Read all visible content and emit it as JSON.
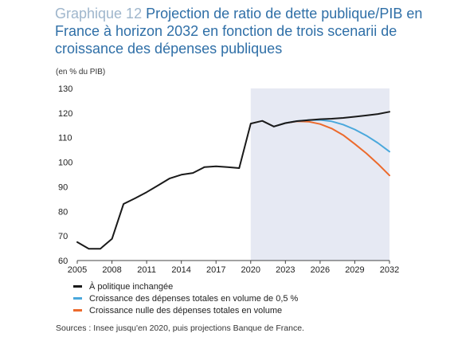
{
  "figure": {
    "label": "Graphique 12",
    "title": "Projection de ratio de dette publique/PIB en France à horizon 2032 en fonction de trois scenarii de croissance des dépenses publiques",
    "unit": "(en % du PIB)",
    "source": "Sources : Insee jusqu'en 2020, puis projections Banque de France."
  },
  "chart_data": {
    "type": "line",
    "title": "Projection de ratio de dette publique/PIB en France à horizon 2032 en fonction de trois scenarii de croissance des dépenses publiques",
    "ylabel": "(en % du PIB)",
    "xlim": [
      2005,
      2032
    ],
    "ylim": [
      60,
      130
    ],
    "x_ticks": [
      "2005",
      "2008",
      "2011",
      "2014",
      "2017",
      "2020",
      "2023",
      "2026",
      "2029",
      "2032"
    ],
    "y_ticks": [
      "60",
      "70",
      "80",
      "90",
      "100",
      "110",
      "120",
      "130"
    ],
    "projection_start": 2020,
    "projection_shading_color": "#e6e9f3",
    "grid": false,
    "series": [
      {
        "name": "À politique inchangée",
        "color": "#1a1a1a",
        "points": [
          [
            2005,
            67.5
          ],
          [
            2006,
            64.8
          ],
          [
            2007,
            64.8
          ],
          [
            2008,
            68.8
          ],
          [
            2009,
            83.0
          ],
          [
            2010,
            85.3
          ],
          [
            2011,
            87.8
          ],
          [
            2012,
            90.6
          ],
          [
            2013,
            93.4
          ],
          [
            2014,
            94.9
          ],
          [
            2015,
            95.6
          ],
          [
            2016,
            98.0
          ],
          [
            2017,
            98.3
          ],
          [
            2018,
            98.0
          ],
          [
            2019,
            97.6
          ],
          [
            2020,
            115.7
          ],
          [
            2021,
            116.8
          ],
          [
            2022,
            114.5
          ],
          [
            2023,
            115.9
          ],
          [
            2024,
            116.7
          ],
          [
            2025,
            117.1
          ],
          [
            2026,
            117.5
          ],
          [
            2027,
            117.7
          ],
          [
            2028,
            118.0
          ],
          [
            2029,
            118.5
          ],
          [
            2030,
            119.0
          ],
          [
            2031,
            119.6
          ],
          [
            2032,
            120.5
          ]
        ]
      },
      {
        "name": "Croissance des dépenses totales en volume de 0,5 %",
        "color": "#4aa8dc",
        "points": [
          [
            2022,
            114.5
          ],
          [
            2023,
            115.9
          ],
          [
            2024,
            116.7
          ],
          [
            2025,
            117.1
          ],
          [
            2026,
            117.2
          ],
          [
            2027,
            116.6
          ],
          [
            2028,
            115.3
          ],
          [
            2029,
            113.3
          ],
          [
            2030,
            110.8
          ],
          [
            2031,
            107.8
          ],
          [
            2032,
            104.3
          ]
        ]
      },
      {
        "name": "Croissance nulle des dépenses totales en volume",
        "color": "#ec6a2c",
        "points": [
          [
            2022,
            114.5
          ],
          [
            2023,
            115.9
          ],
          [
            2024,
            116.6
          ],
          [
            2025,
            116.5
          ],
          [
            2026,
            115.5
          ],
          [
            2027,
            113.7
          ],
          [
            2028,
            111.0
          ],
          [
            2029,
            107.4
          ],
          [
            2030,
            103.6
          ],
          [
            2031,
            99.3
          ],
          [
            2032,
            94.6
          ]
        ]
      }
    ]
  }
}
